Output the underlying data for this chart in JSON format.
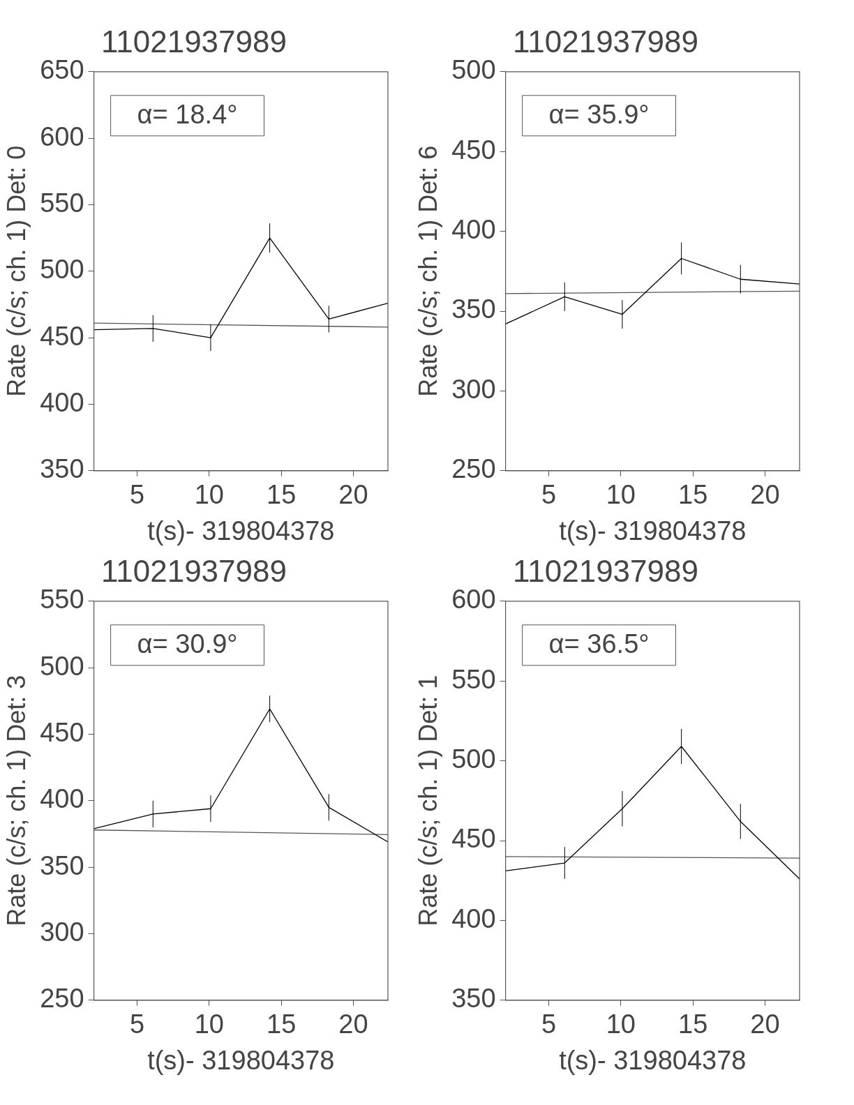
{
  "chart_data": [
    {
      "type": "line",
      "title": "11021937989",
      "xlabel": "t(s)- 319804378",
      "ylabel": "Rate (c/s; ch. 1) Det: 0",
      "annotations": [
        "α= 18.4°"
      ],
      "xlim": [
        2,
        22.4
      ],
      "xticks": [
        5,
        10,
        15,
        20
      ],
      "ylim": [
        350,
        650
      ],
      "yticks": [
        350,
        400,
        450,
        500,
        550,
        600,
        650
      ],
      "marker": "none",
      "series": [
        {
          "color": "#000000",
          "x": [
            2,
            6.1,
            10.1,
            14.2,
            18.3,
            22.4
          ],
          "values": [
            456,
            457,
            450,
            525,
            464,
            476
          ],
          "errors": [
            null,
            10,
            10,
            11,
            10,
            null
          ]
        },
        {
          "color": "#555555",
          "x": [
            2,
            22.4
          ],
          "values": [
            461,
            458
          ]
        }
      ]
    },
    {
      "type": "line",
      "title": "11021937989",
      "xlabel": "t(s)- 319804378",
      "ylabel": "Rate (c/s; ch. 1) Det: 6",
      "annotations": [
        "α= 35.9°"
      ],
      "xlim": [
        2,
        22.4
      ],
      "xticks": [
        5,
        10,
        15,
        20
      ],
      "ylim": [
        250,
        500
      ],
      "yticks": [
        250,
        300,
        350,
        400,
        450,
        500
      ],
      "marker": "none",
      "series": [
        {
          "color": "#000000",
          "x": [
            2,
            6.1,
            10.1,
            14.2,
            18.3,
            22.4
          ],
          "values": [
            342,
            359,
            348,
            383,
            370,
            367
          ],
          "errors": [
            null,
            9,
            9,
            10,
            9,
            null
          ]
        },
        {
          "color": "#555555",
          "x": [
            2,
            22.4
          ],
          "values": [
            361,
            362.5
          ]
        }
      ]
    },
    {
      "type": "line",
      "title": "11021937989",
      "xlabel": "t(s)- 319804378",
      "ylabel": "Rate (c/s; ch. 1) Det: 3",
      "annotations": [
        "α= 30.9°"
      ],
      "xlim": [
        2,
        22.4
      ],
      "xticks": [
        5,
        10,
        15,
        20
      ],
      "ylim": [
        250,
        550
      ],
      "yticks": [
        250,
        300,
        350,
        400,
        450,
        500,
        550
      ],
      "marker": "none",
      "series": [
        {
          "color": "#000000",
          "x": [
            2,
            6.1,
            10.1,
            14.2,
            18.3,
            22.4
          ],
          "values": [
            379,
            390,
            394,
            469,
            395,
            369
          ],
          "errors": [
            null,
            10,
            10,
            10,
            10,
            null
          ]
        },
        {
          "color": "#555555",
          "x": [
            2,
            22.4
          ],
          "values": [
            378,
            374.5
          ]
        }
      ]
    },
    {
      "type": "line",
      "title": "11021937989",
      "xlabel": "t(s)- 319804378",
      "ylabel": "Rate (c/s; ch. 1) Det: 1",
      "annotations": [
        "α= 36.5°"
      ],
      "xlim": [
        2,
        22.4
      ],
      "xticks": [
        5,
        10,
        15,
        20
      ],
      "ylim": [
        350,
        600
      ],
      "yticks": [
        350,
        400,
        450,
        500,
        550,
        600
      ],
      "marker": "none",
      "series": [
        {
          "color": "#000000",
          "x": [
            2,
            6.1,
            10.1,
            14.2,
            18.3,
            22.4
          ],
          "values": [
            431,
            436,
            470,
            509,
            462,
            426
          ],
          "errors": [
            null,
            10,
            11,
            11,
            11,
            null
          ]
        },
        {
          "color": "#555555",
          "x": [
            2,
            22.4
          ],
          "values": [
            440,
            439
          ]
        }
      ]
    }
  ]
}
